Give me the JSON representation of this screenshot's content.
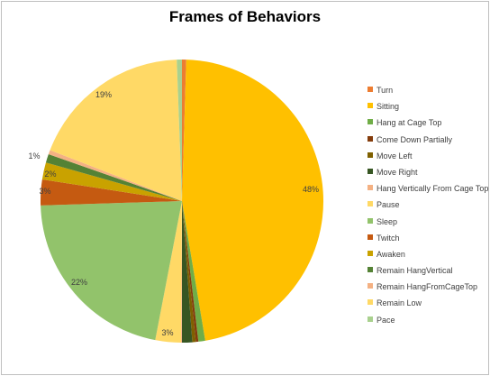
{
  "chart_data": {
    "type": "pie",
    "title": "Frames of Behaviors",
    "legend_position": "right",
    "slices": [
      {
        "name": "Turn",
        "value": 0.5,
        "label": "",
        "color": "#ED7D31"
      },
      {
        "name": "Sitting",
        "value": 48,
        "label": "48%",
        "color": "#FFC000"
      },
      {
        "name": "Hang at Cage Top",
        "value": 0.8,
        "label": "",
        "color": "#70AD47"
      },
      {
        "name": "Come Down Partially",
        "value": 0.3,
        "label": "",
        "color": "#843C0C"
      },
      {
        "name": "Move Left",
        "value": 0.4,
        "label": "",
        "color": "#7F6000"
      },
      {
        "name": "Move Right",
        "value": 1.2,
        "label": "",
        "color": "#375623"
      },
      {
        "name": "Hang Vertically From Cage Top",
        "value": 0.1,
        "label": "",
        "color": "#F4B183"
      },
      {
        "name": "Pause",
        "value": 3,
        "label": "3%",
        "color": "#FFD966"
      },
      {
        "name": "Sleep",
        "value": 22,
        "label": "22%",
        "color": "#92C36B"
      },
      {
        "name": "Twitch",
        "value": 3,
        "label": "3%",
        "color": "#C55A11"
      },
      {
        "name": "Awaken",
        "value": 2,
        "label": "2%",
        "color": "#C9A200"
      },
      {
        "name": "Remain HangVertical",
        "value": 1,
        "label": "",
        "color": "#548235"
      },
      {
        "name": "Remain HangFromCageTop",
        "value": 0.5,
        "label": "1%",
        "color": "#F4B183"
      },
      {
        "name": "Remain Low",
        "value": 19,
        "label": "19%",
        "color": "#FFD966"
      },
      {
        "name": "Pace",
        "value": 0.6,
        "label": "",
        "color": "#A9D18E"
      }
    ]
  }
}
